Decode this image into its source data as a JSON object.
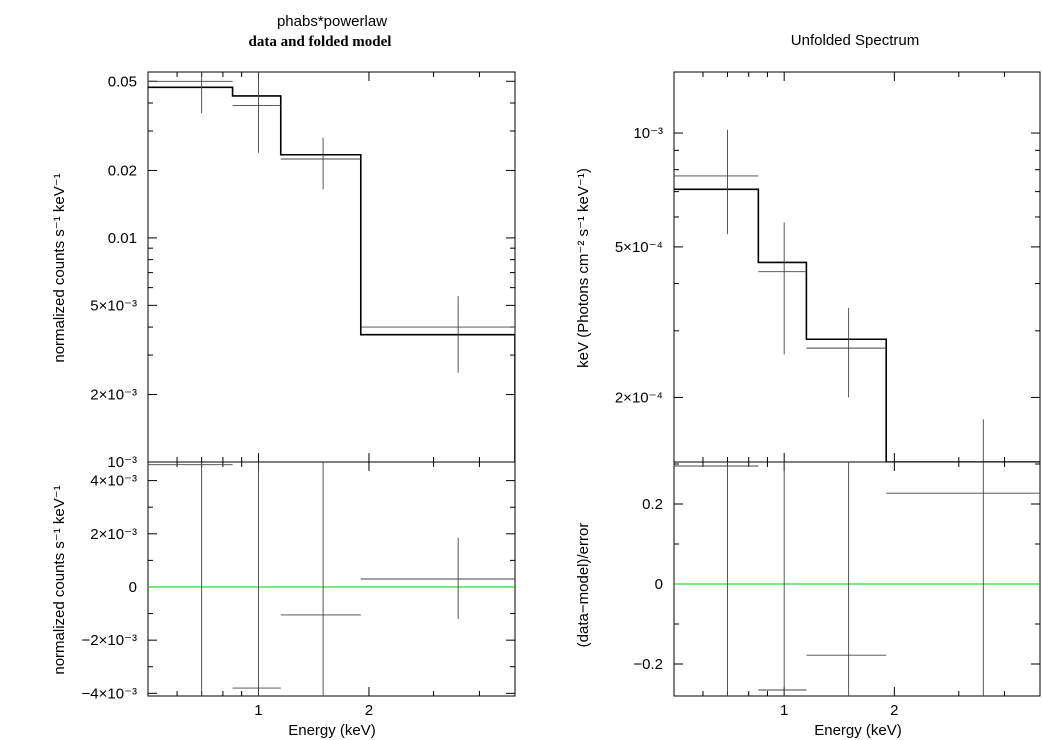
{
  "chart_data": [
    {
      "panel": "left-top",
      "type": "line",
      "title": "phabs*powerlaw",
      "subtitle": "data and folded model",
      "xlabel": "",
      "ylabel": "normalized counts s⁻¹ keV⁻¹",
      "xscale": "log",
      "yscale": "log",
      "xlim": [
        0.5,
        5.0
      ],
      "ylim": [
        0.001,
        0.055
      ],
      "yticks": [
        {
          "v": 0.05,
          "label": "0.05"
        },
        {
          "v": 0.02,
          "label": "0.02"
        },
        {
          "v": 0.01,
          "label": "0.01"
        },
        {
          "v": 0.005,
          "label": "5×10⁻³"
        },
        {
          "v": 0.002,
          "label": "2×10⁻³"
        },
        {
          "v": 0.001,
          "label": "10⁻³"
        }
      ],
      "data": [
        {
          "x": 0.7,
          "x_lo": 0.5,
          "x_hi": 0.85,
          "y": 0.05,
          "y_lo": 0.036,
          "y_hi": 0.055
        },
        {
          "x": 1.0,
          "x_lo": 0.85,
          "x_hi": 1.15,
          "y": 0.039,
          "y_lo": 0.024,
          "y_hi": 0.055
        },
        {
          "x": 1.5,
          "x_lo": 1.15,
          "x_hi": 1.9,
          "y": 0.0225,
          "y_lo": 0.0165,
          "y_hi": 0.028
        },
        {
          "x": 3.5,
          "x_lo": 1.9,
          "x_hi": 5.0,
          "y": 0.004,
          "y_lo": 0.0025,
          "y_hi": 0.0055
        }
      ],
      "model_steps": [
        {
          "x_lo": 0.5,
          "x_hi": 0.85,
          "y": 0.047
        },
        {
          "x_lo": 0.85,
          "x_hi": 1.15,
          "y": 0.043
        },
        {
          "x_lo": 1.15,
          "x_hi": 1.9,
          "y": 0.0235
        },
        {
          "x_lo": 1.9,
          "x_hi": 5.0,
          "y": 0.0037
        }
      ]
    },
    {
      "panel": "left-bottom",
      "type": "line",
      "xlabel": "Energy (keV)",
      "ylabel": "normalized counts s⁻¹ keV⁻¹",
      "xscale": "log",
      "yscale": "linear",
      "xlim": [
        0.5,
        5.0
      ],
      "ylim": [
        -0.0041,
        0.0047
      ],
      "xticks": [
        {
          "v": 1,
          "label": "1"
        },
        {
          "v": 2,
          "label": "2"
        }
      ],
      "yticks": [
        {
          "v": 0.004,
          "label": "4×10⁻³"
        },
        {
          "v": 0.002,
          "label": "2×10⁻³"
        },
        {
          "v": 0,
          "label": "0"
        },
        {
          "v": -0.002,
          "label": "−2×10⁻³"
        },
        {
          "v": -0.004,
          "label": "−4×10⁻³"
        }
      ],
      "zero_line_color": "#00cc00",
      "data": [
        {
          "x": 0.7,
          "x_lo": 0.5,
          "x_hi": 0.85,
          "y": 0.0046,
          "y_lo": -0.0041,
          "y_hi": 0.0047
        },
        {
          "x": 1.0,
          "x_lo": 0.85,
          "x_hi": 1.15,
          "y": -0.0038,
          "y_lo": -0.0041,
          "y_hi": 0.0047
        },
        {
          "x": 1.5,
          "x_lo": 1.15,
          "x_hi": 1.9,
          "y": -0.00105,
          "y_lo": -0.0041,
          "y_hi": 0.0047
        },
        {
          "x": 3.5,
          "x_lo": 1.9,
          "x_hi": 5.0,
          "y": 0.0003,
          "y_lo": -0.0012,
          "y_hi": 0.00185
        }
      ]
    },
    {
      "panel": "right-top",
      "type": "line",
      "title": "Unfolded Spectrum",
      "xlabel": "",
      "ylabel": "keV (Photons cm⁻² s⁻¹ keV⁻¹)",
      "xscale": "log",
      "yscale": "log",
      "xlim": [
        0.5,
        5.0
      ],
      "ylim": [
        0.000135,
        0.00145
      ],
      "yticks": [
        {
          "v": 0.001,
          "label": "10⁻³"
        },
        {
          "v": 0.0005,
          "label": "5×10⁻⁴"
        },
        {
          "v": 0.0002,
          "label": "2×10⁻⁴"
        }
      ],
      "data": [
        {
          "x": 0.7,
          "x_lo": 0.5,
          "x_hi": 0.85,
          "y": 0.00077,
          "y_lo": 0.00054,
          "y_hi": 0.00102
        },
        {
          "x": 1.0,
          "x_lo": 0.85,
          "x_hi": 1.15,
          "y": 0.00043,
          "y_lo": 0.00026,
          "y_hi": 0.00058
        },
        {
          "x": 1.5,
          "x_lo": 1.15,
          "x_hi": 1.9,
          "y": 0.00027,
          "y_lo": 0.0002,
          "y_hi": 0.000345
        },
        {
          "x": 3.5,
          "x_lo": 1.9,
          "x_hi": 5.0,
          "y": 0.000135,
          "y_lo": 0.000135,
          "y_hi": 0.000175
        }
      ],
      "model_steps": [
        {
          "x_lo": 0.5,
          "x_hi": 0.85,
          "y": 0.00071
        },
        {
          "x_lo": 0.85,
          "x_hi": 1.15,
          "y": 0.000455
        },
        {
          "x_lo": 1.15,
          "x_hi": 1.9,
          "y": 0.000285
        },
        {
          "x_lo": 1.9,
          "x_hi": 5.0,
          "y": 0.000135
        }
      ]
    },
    {
      "panel": "right-bottom",
      "type": "line",
      "xlabel": "Energy (keV)",
      "ylabel": "(data−model)/error",
      "xscale": "log",
      "yscale": "linear",
      "xlim": [
        0.5,
        5.0
      ],
      "ylim": [
        -0.28,
        0.305
      ],
      "xticks": [
        {
          "v": 1,
          "label": "1"
        },
        {
          "v": 2,
          "label": "2"
        }
      ],
      "yticks": [
        {
          "v": 0.2,
          "label": "0.2"
        },
        {
          "v": 0,
          "label": "0"
        },
        {
          "v": -0.2,
          "label": "−0.2"
        }
      ],
      "zero_line_color": "#00cc00",
      "data": [
        {
          "x": 0.7,
          "x_lo": 0.5,
          "x_hi": 0.85,
          "y": 0.295,
          "y_lo": -0.28,
          "y_hi": 0.305
        },
        {
          "x": 1.0,
          "x_lo": 0.85,
          "x_hi": 1.15,
          "y": -0.265,
          "y_lo": -0.28,
          "y_hi": 0.305
        },
        {
          "x": 1.5,
          "x_lo": 1.15,
          "x_hi": 1.9,
          "y": -0.178,
          "y_lo": -0.28,
          "y_hi": 0.305
        },
        {
          "x": 3.5,
          "x_lo": 1.9,
          "x_hi": 5.0,
          "y": 0.227,
          "y_lo": -0.28,
          "y_hi": 0.305
        }
      ]
    }
  ]
}
